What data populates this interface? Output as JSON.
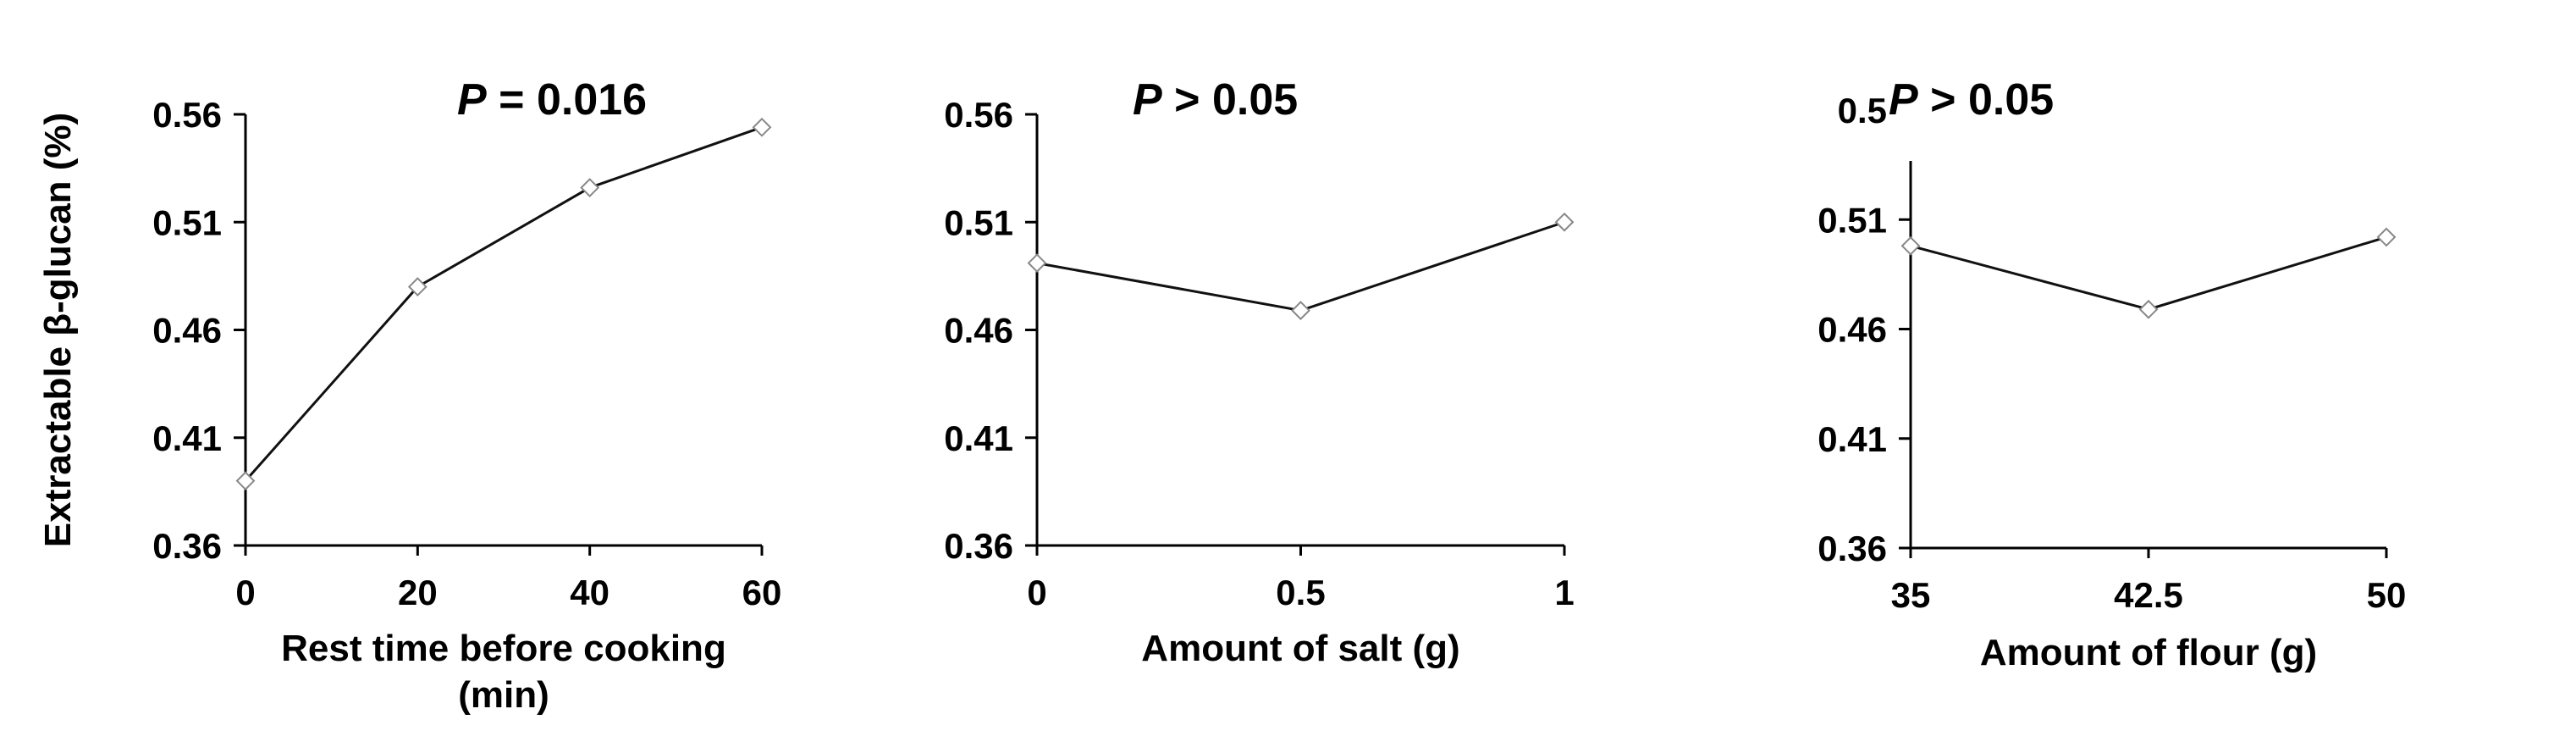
{
  "chart_data": [
    {
      "type": "line",
      "x": [
        0,
        20,
        40,
        60
      ],
      "values": [
        0.39,
        0.48,
        0.526,
        0.554
      ],
      "xticks": [
        "0",
        "20",
        "40",
        "60"
      ],
      "xlabel_lines": [
        "Rest time before cooking",
        "(min)"
      ],
      "ylabel": "Extractable β-glucan (%)",
      "yticks": [
        "0.36",
        "0.41",
        "0.46",
        "0.51",
        "0.56"
      ],
      "ylim": [
        0.36,
        0.56
      ],
      "annotation": {
        "p_symbol": "P",
        "p_rest": " = 0.016"
      },
      "grid": false
    },
    {
      "type": "line",
      "x": [
        0,
        0.5,
        1
      ],
      "values": [
        0.491,
        0.469,
        0.51
      ],
      "xticks": [
        "0",
        "0.5",
        "1"
      ],
      "xlabel_lines": [
        "Amount of salt (g)"
      ],
      "yticks": [
        "0.36",
        "0.41",
        "0.46",
        "0.51",
        "0.56"
      ],
      "ylim": [
        0.36,
        0.56
      ],
      "annotation": {
        "p_symbol": "P",
        "p_rest": " > 0.05"
      },
      "grid": false
    },
    {
      "type": "line",
      "x": [
        35,
        42.5,
        50
      ],
      "values": [
        0.498,
        0.469,
        0.502
      ],
      "xticks": [
        "35",
        "42.5",
        "50"
      ],
      "xlabel_lines": [
        "Amount of flour (g)"
      ],
      "yticks": [
        "0.36",
        "0.41",
        "0.46",
        "0.51",
        "0.56"
      ],
      "ytick_top_partial": "0.5",
      "ylim": [
        0.36,
        0.56
      ],
      "annotation": {
        "p_symbol": "P",
        "p_rest": " > 0.05"
      },
      "grid": false
    }
  ]
}
